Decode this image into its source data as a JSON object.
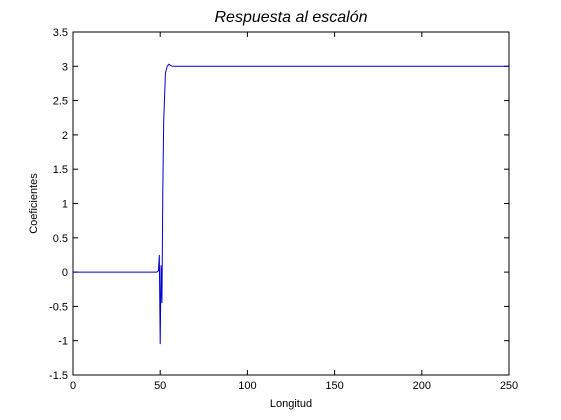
{
  "chart_data": {
    "type": "line",
    "title": "Respuesta al escalón",
    "xlabel": "Longitud",
    "ylabel": "Coeficientes",
    "xlim": [
      0,
      250
    ],
    "ylim": [
      -1.5,
      3.5
    ],
    "xticks": [
      0,
      50,
      100,
      150,
      200,
      250
    ],
    "yticks": [
      -1.5,
      -1,
      -0.5,
      0,
      0.5,
      1,
      1.5,
      2,
      2.5,
      3,
      3.5
    ],
    "xtick_labels": [
      "0",
      "50",
      "100",
      "150",
      "200",
      "250"
    ],
    "ytick_labels": [
      "-1.5",
      "-1",
      "-0.5",
      "0",
      "0.5",
      "1",
      "1.5",
      "2",
      "2.5",
      "3",
      "3.5"
    ],
    "grid": false,
    "colors": {
      "series": "#0000cc",
      "axes": "#000000",
      "background": "#ffffff"
    },
    "series": [
      {
        "x": [
          0,
          48,
          49,
          49.5,
          50,
          50.5,
          51,
          51.5,
          52,
          53,
          54,
          55,
          56,
          57,
          58,
          250
        ],
        "y": [
          0,
          0,
          0.02,
          0.25,
          -1.05,
          0.1,
          -0.45,
          1.2,
          2.2,
          2.9,
          3.0,
          3.03,
          3.01,
          3.0,
          3.0,
          3.0
        ]
      }
    ]
  }
}
